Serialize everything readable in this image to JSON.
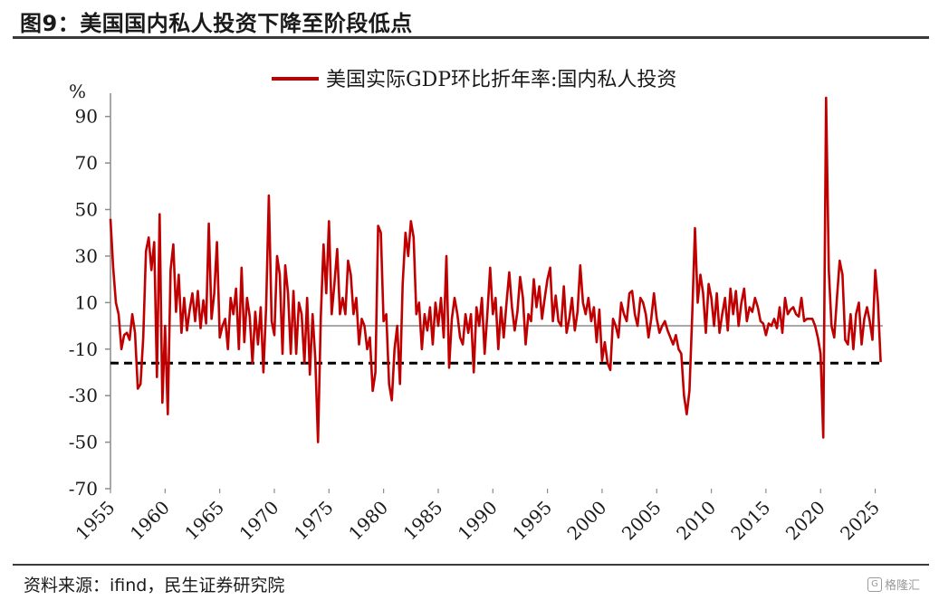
{
  "title": "图9：美国国内私人投资下降至阶段低点",
  "source": "资料来源：ifind，民生证券研究院",
  "watermark": "格隆汇",
  "colors": {
    "series": "#c00000",
    "zero_line": "#8c8c8c",
    "reference_line": "#000000"
  },
  "chart_data": {
    "type": "line",
    "title": "",
    "ylabel": "%",
    "xlabel": "",
    "ylim": [
      -70,
      100
    ],
    "yticks": [
      90,
      70,
      50,
      30,
      10,
      -10,
      -30,
      -50,
      -70
    ],
    "xlim": [
      1955,
      2025.7
    ],
    "xticks": [
      1955,
      1960,
      1965,
      1970,
      1975,
      1980,
      1985,
      1990,
      1995,
      2000,
      2005,
      2010,
      2015,
      2020,
      2025
    ],
    "legend": {
      "position": "top-center",
      "entries": [
        "美国实际GDP环比折年率:国内私人投资"
      ]
    },
    "grid": false,
    "reference_lines": [
      {
        "y": 0,
        "style": "solid"
      },
      {
        "y": -16,
        "style": "dashed"
      }
    ],
    "series": [
      {
        "name": "美国实际GDP环比折年率:国内私人投资",
        "points": [
          [
            1955.0,
            46
          ],
          [
            1955.25,
            25
          ],
          [
            1955.5,
            10
          ],
          [
            1955.75,
            5
          ],
          [
            1956.0,
            -10
          ],
          [
            1956.25,
            -4
          ],
          [
            1956.5,
            -3
          ],
          [
            1956.75,
            -6
          ],
          [
            1957.0,
            5
          ],
          [
            1957.25,
            -3
          ],
          [
            1957.5,
            -27
          ],
          [
            1957.75,
            -25
          ],
          [
            1958.0,
            -5
          ],
          [
            1958.25,
            32
          ],
          [
            1958.5,
            38
          ],
          [
            1958.75,
            24
          ],
          [
            1959.0,
            36
          ],
          [
            1959.25,
            -22
          ],
          [
            1959.5,
            48
          ],
          [
            1959.75,
            -33
          ],
          [
            1960.0,
            0
          ],
          [
            1960.25,
            -38
          ],
          [
            1960.5,
            24
          ],
          [
            1960.75,
            35
          ],
          [
            1961.0,
            6
          ],
          [
            1961.25,
            22
          ],
          [
            1961.5,
            -3
          ],
          [
            1961.75,
            12
          ],
          [
            1962.0,
            -2
          ],
          [
            1962.25,
            7
          ],
          [
            1962.5,
            14
          ],
          [
            1962.75,
            2
          ],
          [
            1963.0,
            15
          ],
          [
            1963.25,
            -1
          ],
          [
            1963.5,
            11
          ],
          [
            1963.75,
            1
          ],
          [
            1964.0,
            44
          ],
          [
            1964.25,
            3
          ],
          [
            1964.5,
            14
          ],
          [
            1964.75,
            36
          ],
          [
            1965.0,
            -5
          ],
          [
            1965.25,
            0
          ],
          [
            1965.5,
            3
          ],
          [
            1965.75,
            -10
          ],
          [
            1966.0,
            12
          ],
          [
            1966.25,
            5
          ],
          [
            1966.5,
            16
          ],
          [
            1966.75,
            -10
          ],
          [
            1967.0,
            25
          ],
          [
            1967.25,
            -7
          ],
          [
            1967.5,
            12
          ],
          [
            1967.75,
            4
          ],
          [
            1968.0,
            -16
          ],
          [
            1968.25,
            6
          ],
          [
            1968.5,
            -8
          ],
          [
            1968.75,
            8
          ],
          [
            1969.0,
            -20
          ],
          [
            1969.25,
            8
          ],
          [
            1969.5,
            56
          ],
          [
            1969.75,
            2
          ],
          [
            1970.0,
            -4
          ],
          [
            1970.25,
            30
          ],
          [
            1970.5,
            22
          ],
          [
            1970.75,
            -12
          ],
          [
            1971.0,
            26
          ],
          [
            1971.25,
            14
          ],
          [
            1971.5,
            -12
          ],
          [
            1971.75,
            15
          ],
          [
            1972.0,
            -12
          ],
          [
            1972.25,
            10
          ],
          [
            1972.5,
            5
          ],
          [
            1972.75,
            -16
          ],
          [
            1973.0,
            12
          ],
          [
            1973.25,
            -21
          ],
          [
            1973.5,
            5
          ],
          [
            1973.75,
            -14
          ],
          [
            1974.0,
            -50
          ],
          [
            1974.25,
            4
          ],
          [
            1974.5,
            35
          ],
          [
            1974.75,
            14
          ],
          [
            1975.0,
            45
          ],
          [
            1975.25,
            5
          ],
          [
            1975.5,
            18
          ],
          [
            1975.75,
            33
          ],
          [
            1976.0,
            5
          ],
          [
            1976.25,
            12
          ],
          [
            1976.5,
            5
          ],
          [
            1976.75,
            28
          ],
          [
            1977.0,
            22
          ],
          [
            1977.25,
            5
          ],
          [
            1977.5,
            12
          ],
          [
            1977.75,
            -8
          ],
          [
            1978.0,
            3
          ],
          [
            1978.25,
            0
          ],
          [
            1978.5,
            -10
          ],
          [
            1978.75,
            -5
          ],
          [
            1979.0,
            -28
          ],
          [
            1979.25,
            -20
          ],
          [
            1979.5,
            43
          ],
          [
            1979.75,
            40
          ],
          [
            1980.0,
            2
          ],
          [
            1980.25,
            5
          ],
          [
            1980.5,
            -25
          ],
          [
            1980.75,
            -32
          ],
          [
            1981.0,
            -10
          ],
          [
            1981.25,
            0
          ],
          [
            1981.5,
            -25
          ],
          [
            1981.75,
            18
          ],
          [
            1982.0,
            40
          ],
          [
            1982.25,
            30
          ],
          [
            1982.5,
            45
          ],
          [
            1982.75,
            38
          ],
          [
            1983.0,
            5
          ],
          [
            1983.25,
            10
          ],
          [
            1983.5,
            -10
          ],
          [
            1983.75,
            5
          ],
          [
            1984.0,
            -2
          ],
          [
            1984.25,
            8
          ],
          [
            1984.5,
            -8
          ],
          [
            1984.75,
            10
          ],
          [
            1985.0,
            0
          ],
          [
            1985.25,
            12
          ],
          [
            1985.5,
            -5
          ],
          [
            1985.75,
            30
          ],
          [
            1986.0,
            -18
          ],
          [
            1986.25,
            3
          ],
          [
            1986.5,
            12
          ],
          [
            1986.75,
            5
          ],
          [
            1987.0,
            -5
          ],
          [
            1987.25,
            -8
          ],
          [
            1987.5,
            5
          ],
          [
            1987.75,
            -3
          ],
          [
            1988.0,
            5
          ],
          [
            1988.25,
            -20
          ],
          [
            1988.5,
            8
          ],
          [
            1988.75,
            0
          ],
          [
            1989.0,
            12
          ],
          [
            1989.25,
            -12
          ],
          [
            1989.5,
            5
          ],
          [
            1989.75,
            25
          ],
          [
            1990.0,
            5
          ],
          [
            1990.25,
            12
          ],
          [
            1990.5,
            -10
          ],
          [
            1990.75,
            8
          ],
          [
            1991.0,
            -5
          ],
          [
            1991.25,
            10
          ],
          [
            1991.5,
            23
          ],
          [
            1991.75,
            8
          ],
          [
            1992.0,
            -2
          ],
          [
            1992.25,
            6
          ],
          [
            1992.5,
            21
          ],
          [
            1992.75,
            12
          ],
          [
            1993.0,
            -8
          ],
          [
            1993.25,
            5
          ],
          [
            1993.5,
            2
          ],
          [
            1993.75,
            20
          ],
          [
            1994.0,
            8
          ],
          [
            1994.25,
            17
          ],
          [
            1994.5,
            3
          ],
          [
            1994.75,
            12
          ],
          [
            1995.0,
            20
          ],
          [
            1995.25,
            25
          ],
          [
            1995.5,
            2
          ],
          [
            1995.75,
            13
          ],
          [
            1996.0,
            2
          ],
          [
            1996.25,
            0
          ],
          [
            1996.5,
            17
          ],
          [
            1996.75,
            -3
          ],
          [
            1997.0,
            3
          ],
          [
            1997.25,
            12
          ],
          [
            1997.5,
            -2
          ],
          [
            1997.75,
            6
          ],
          [
            1998.0,
            26
          ],
          [
            1998.25,
            10
          ],
          [
            1998.5,
            5
          ],
          [
            1998.75,
            12
          ],
          [
            1999.0,
            2
          ],
          [
            1999.25,
            8
          ],
          [
            1999.5,
            -7
          ],
          [
            1999.75,
            7
          ],
          [
            2000.0,
            -15
          ],
          [
            2000.25,
            -7
          ],
          [
            2000.5,
            -16
          ],
          [
            2000.75,
            -19
          ],
          [
            2001.0,
            3
          ],
          [
            2001.25,
            0
          ],
          [
            2001.5,
            -5
          ],
          [
            2001.75,
            10
          ],
          [
            2002.0,
            5
          ],
          [
            2002.25,
            2
          ],
          [
            2002.5,
            14
          ],
          [
            2002.75,
            15
          ],
          [
            2003.0,
            5
          ],
          [
            2003.25,
            0
          ],
          [
            2003.5,
            12
          ],
          [
            2003.75,
            10
          ],
          [
            2004.0,
            5
          ],
          [
            2004.25,
            -5
          ],
          [
            2004.5,
            3
          ],
          [
            2004.75,
            14
          ],
          [
            2005.0,
            3
          ],
          [
            2005.25,
            -3
          ],
          [
            2005.5,
            0
          ],
          [
            2005.75,
            2
          ],
          [
            2006.0,
            -2
          ],
          [
            2006.25,
            -5
          ],
          [
            2006.5,
            -8
          ],
          [
            2006.75,
            -4
          ],
          [
            2007.0,
            -10
          ],
          [
            2007.25,
            -12
          ],
          [
            2007.5,
            -30
          ],
          [
            2007.75,
            -38
          ],
          [
            2008.0,
            -28
          ],
          [
            2008.25,
            5
          ],
          [
            2008.5,
            42
          ],
          [
            2008.75,
            10
          ],
          [
            2009.0,
            22
          ],
          [
            2009.25,
            14
          ],
          [
            2009.5,
            -3
          ],
          [
            2009.75,
            18
          ],
          [
            2010.0,
            12
          ],
          [
            2010.25,
            0
          ],
          [
            2010.5,
            14
          ],
          [
            2010.75,
            -3
          ],
          [
            2011.0,
            5
          ],
          [
            2011.25,
            12
          ],
          [
            2011.5,
            -2
          ],
          [
            2011.75,
            16
          ],
          [
            2012.0,
            5
          ],
          [
            2012.25,
            15
          ],
          [
            2012.5,
            0
          ],
          [
            2012.75,
            10
          ],
          [
            2013.0,
            16
          ],
          [
            2013.25,
            2
          ],
          [
            2013.5,
            8
          ],
          [
            2013.75,
            6
          ],
          [
            2014.0,
            12
          ],
          [
            2014.25,
            8
          ],
          [
            2014.5,
            2
          ],
          [
            2014.75,
            1
          ],
          [
            2015.0,
            -4
          ],
          [
            2015.25,
            1
          ],
          [
            2015.5,
            0
          ],
          [
            2015.75,
            3
          ],
          [
            2016.0,
            -1
          ],
          [
            2016.25,
            8
          ],
          [
            2016.5,
            -3
          ],
          [
            2016.75,
            12
          ],
          [
            2017.0,
            5
          ],
          [
            2017.25,
            7
          ],
          [
            2017.5,
            8
          ],
          [
            2017.75,
            5
          ],
          [
            2018.0,
            4
          ],
          [
            2018.25,
            12
          ],
          [
            2018.5,
            2
          ],
          [
            2018.75,
            3
          ],
          [
            2019.0,
            3
          ],
          [
            2019.25,
            3
          ],
          [
            2019.5,
            0
          ],
          [
            2019.75,
            -5
          ],
          [
            2020.0,
            -12
          ],
          [
            2020.25,
            -48
          ],
          [
            2020.5,
            98
          ],
          [
            2020.75,
            24
          ],
          [
            2021.0,
            0
          ],
          [
            2021.25,
            -5
          ],
          [
            2021.5,
            12
          ],
          [
            2021.75,
            28
          ],
          [
            2022.0,
            22
          ],
          [
            2022.25,
            -6
          ],
          [
            2022.5,
            -8
          ],
          [
            2022.75,
            5
          ],
          [
            2023.0,
            -10
          ],
          [
            2023.25,
            5
          ],
          [
            2023.5,
            10
          ],
          [
            2023.75,
            -8
          ],
          [
            2024.0,
            3
          ],
          [
            2024.25,
            8
          ],
          [
            2024.5,
            2
          ],
          [
            2024.75,
            -6
          ],
          [
            2025.0,
            24
          ],
          [
            2025.25,
            10
          ],
          [
            2025.5,
            -15.6
          ]
        ]
      }
    ]
  }
}
